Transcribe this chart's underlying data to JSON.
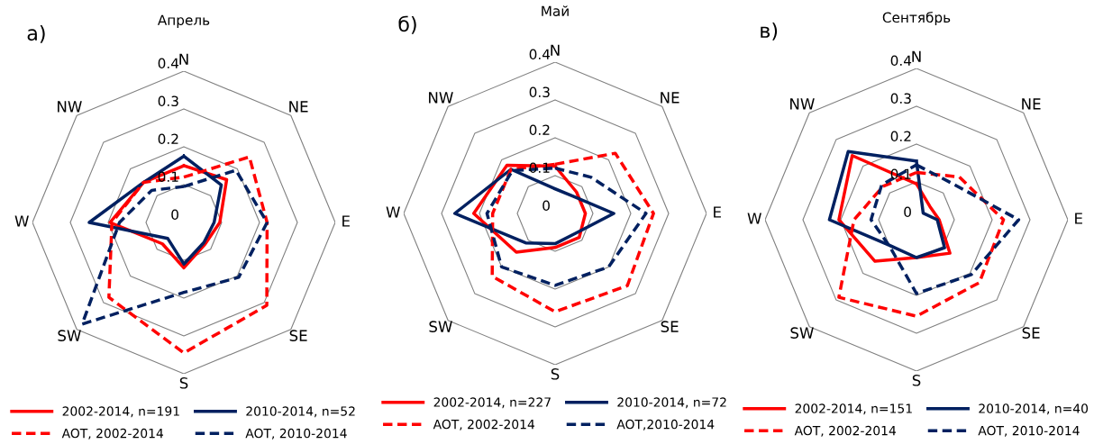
{
  "chart_data": [
    {
      "type": "radar",
      "title": "Апрель",
      "annotations": [
        "а)"
      ],
      "categories": [
        "N",
        "NE",
        "E",
        "SE",
        "S",
        "SW",
        "W",
        "NW"
      ],
      "ylim": [
        0,
        0.4
      ],
      "yticks": [
        0,
        0.1,
        0.2,
        0.3,
        0.4
      ],
      "grid": true,
      "legend": "bottom",
      "series": [
        {
          "name": "2002-2014, n=191",
          "color": "#ff0000",
          "line_style": "solid",
          "values": [
            0.15,
            0.16,
            0.095,
            0.08,
            0.12,
            0.08,
            0.195,
            0.15
          ]
        },
        {
          "name": "2010-2014, n=52",
          "color": "#002060",
          "line_style": "solid",
          "values": [
            0.175,
            0.14,
            0.08,
            0.075,
            0.11,
            0.06,
            0.25,
            0.15
          ]
        },
        {
          "name": "AOT, 2002-2014",
          "color": "#ff0000",
          "line_style": "dashed",
          "values": [
            0.12,
            0.245,
            0.22,
            0.31,
            0.345,
            0.28,
            0.19,
            0.15
          ]
        },
        {
          "name": "AOT, 2010-2014",
          "color": "#002060",
          "line_style": "dashed",
          "values": [
            0.095,
            0.195,
            0.22,
            0.205,
            0.185,
            0.38,
            0.17,
            0.12
          ]
        }
      ]
    },
    {
      "type": "radar",
      "title": "Май",
      "annotations": [
        "б)"
      ],
      "categories": [
        "N",
        "NE",
        "E",
        "SE",
        "S",
        "SW",
        "W",
        "NW"
      ],
      "ylim": [
        0,
        0.4
      ],
      "yticks": [
        0,
        0.1,
        0.2,
        0.3,
        0.4
      ],
      "grid": true,
      "legend": "bottom",
      "series": [
        {
          "name": "2002-2014, n=227",
          "color": "#ff0000",
          "line_style": "solid",
          "values": [
            0.125,
            0.08,
            0.08,
            0.09,
            0.09,
            0.145,
            0.215,
            0.18
          ]
        },
        {
          "name": "2010-2014, n=72",
          "color": "#002060",
          "line_style": "solid",
          "values": [
            0.065,
            0.065,
            0.155,
            0.075,
            0.08,
            0.11,
            0.265,
            0.165
          ]
        },
        {
          "name": "AOT, 2002-2014",
          "color": "#ff0000",
          "line_style": "dashed",
          "values": [
            0.13,
            0.225,
            0.26,
            0.27,
            0.26,
            0.235,
            0.165,
            0.165
          ]
        },
        {
          "name": "AOT,2010-2014",
          "color": "#002060",
          "line_style": "dashed",
          "values": [
            0.12,
            0.135,
            0.24,
            0.2,
            0.19,
            0.2,
            0.18,
            0.16
          ]
        }
      ]
    },
    {
      "type": "radar",
      "title": "Сентябрь",
      "annotations": [
        "в)"
      ],
      "categories": [
        "N",
        "NE",
        "E",
        "SE",
        "S",
        "SW",
        "W",
        "NW"
      ],
      "ylim": [
        0,
        0.4
      ],
      "yticks": [
        0,
        0.1,
        0.2,
        0.3,
        0.4
      ],
      "grid": true,
      "legend": "bottom",
      "series": [
        {
          "name": "2002-2014, n=151",
          "color": "#ff0000",
          "line_style": "solid",
          "values": [
            0.095,
            0.05,
            0.06,
            0.125,
            0.1,
            0.155,
            0.205,
            0.24
          ]
        },
        {
          "name": "2010-2014, n=40",
          "color": "#002060",
          "line_style": "solid",
          "values": [
            0.155,
            0.025,
            0.055,
            0.105,
            0.1,
            0.097,
            0.23,
            0.255
          ]
        },
        {
          "name": "AOT, 2002-2014",
          "color": "#ff0000",
          "line_style": "dashed",
          "values": [
            0.125,
            0.16,
            0.23,
            0.235,
            0.255,
            0.29,
            0.165,
            0.125
          ]
        },
        {
          "name": "AOT, 2010-2014",
          "color": "#002060",
          "line_style": "dashed",
          "values": [
            0.145,
            0.135,
            0.27,
            0.205,
            0.195,
            0.1,
            0.12,
            0.13
          ]
        }
      ]
    }
  ]
}
